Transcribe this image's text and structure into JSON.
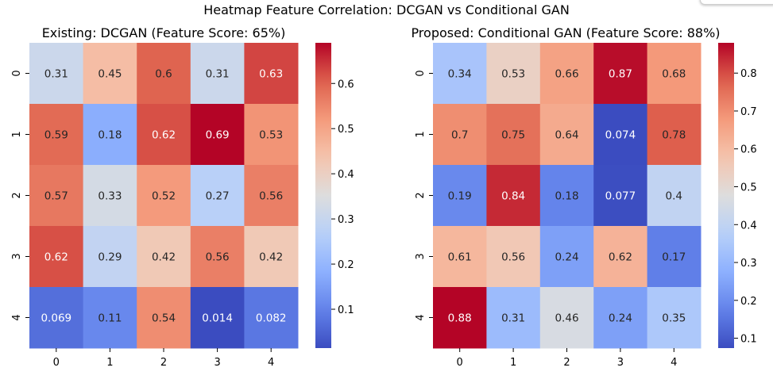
{
  "figure": {
    "suptitle": "Heatmap Feature Correlation: DCGAN vs Conditional GAN"
  },
  "chart_data": [
    {
      "type": "heatmap",
      "title": "Existing: DCGAN (Feature Score: 65%)",
      "x_labels": [
        "0",
        "1",
        "2",
        "3",
        "4"
      ],
      "y_labels": [
        "0",
        "1",
        "2",
        "3",
        "4"
      ],
      "values": [
        [
          0.31,
          0.45,
          0.6,
          0.31,
          0.63
        ],
        [
          0.59,
          0.18,
          0.62,
          0.69,
          0.53
        ],
        [
          0.57,
          0.33,
          0.52,
          0.27,
          0.56
        ],
        [
          0.62,
          0.29,
          0.42,
          0.56,
          0.42
        ],
        [
          0.069,
          0.11,
          0.54,
          0.014,
          0.082
        ]
      ],
      "value_labels": [
        [
          "0.31",
          "0.45",
          "0.6",
          "0.31",
          "0.63"
        ],
        [
          "0.59",
          "0.18",
          "0.62",
          "0.69",
          "0.53"
        ],
        [
          "0.57",
          "0.33",
          "0.52",
          "0.27",
          "0.56"
        ],
        [
          "0.62",
          "0.29",
          "0.42",
          "0.56",
          "0.42"
        ],
        [
          "0.069",
          "0.11",
          "0.54",
          "0.014",
          "0.082"
        ]
      ],
      "colormap": "coolwarm",
      "vmin": 0.014,
      "vmax": 0.69,
      "colorbar_ticks": [
        "0.1",
        "0.2",
        "0.3",
        "0.4",
        "0.5",
        "0.6"
      ]
    },
    {
      "type": "heatmap",
      "title": "Proposed: Conditional GAN (Feature Score: 88%)",
      "x_labels": [
        "0",
        "1",
        "2",
        "3",
        "4"
      ],
      "y_labels": [
        "0",
        "1",
        "2",
        "3",
        "4"
      ],
      "values": [
        [
          0.34,
          0.53,
          0.66,
          0.87,
          0.68
        ],
        [
          0.7,
          0.75,
          0.64,
          0.074,
          0.78
        ],
        [
          0.19,
          0.84,
          0.18,
          0.077,
          0.4
        ],
        [
          0.61,
          0.56,
          0.24,
          0.62,
          0.17
        ],
        [
          0.88,
          0.31,
          0.46,
          0.24,
          0.35
        ]
      ],
      "value_labels": [
        [
          "0.34",
          "0.53",
          "0.66",
          "0.87",
          "0.68"
        ],
        [
          "0.7",
          "0.75",
          "0.64",
          "0.074",
          "0.78"
        ],
        [
          "0.19",
          "0.84",
          "0.18",
          "0.077",
          "0.4"
        ],
        [
          "0.61",
          "0.56",
          "0.24",
          "0.62",
          "0.17"
        ],
        [
          "0.88",
          "0.31",
          "0.46",
          "0.24",
          "0.35"
        ]
      ],
      "colormap": "coolwarm",
      "vmin": 0.074,
      "vmax": 0.88,
      "colorbar_ticks": [
        "0.1",
        "0.2",
        "0.3",
        "0.4",
        "0.5",
        "0.6",
        "0.7",
        "0.8"
      ]
    }
  ]
}
